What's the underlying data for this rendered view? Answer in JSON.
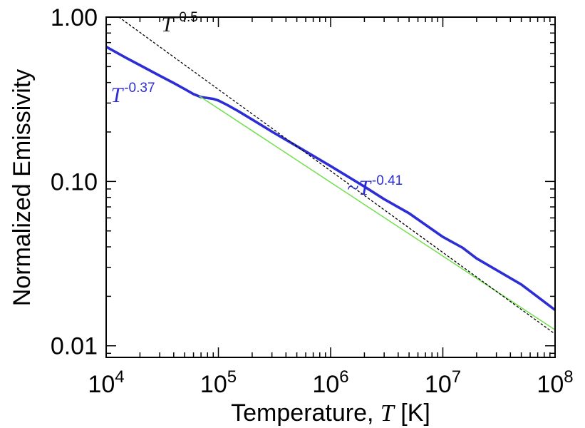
{
  "chart_data": {
    "type": "line",
    "title": "",
    "xlabel_prefix": "Temperature, ",
    "xlabel_var": "T",
    "xlabel_suffix": " [K]",
    "ylabel": "Normalized Emissivity",
    "xscale": "log",
    "yscale": "log",
    "xlim": [
      10000,
      100000000
    ],
    "ylim": [
      0.0085,
      1.0
    ],
    "x_ticks": [
      {
        "value": 10000,
        "base": "10",
        "exp": "4"
      },
      {
        "value": 100000,
        "base": "10",
        "exp": "5"
      },
      {
        "value": 1000000,
        "base": "10",
        "exp": "6"
      },
      {
        "value": 10000000,
        "base": "10",
        "exp": "7"
      },
      {
        "value": 100000000,
        "base": "10",
        "exp": "8"
      }
    ],
    "y_ticks": [
      {
        "value": 0.01,
        "label": "0.01"
      },
      {
        "value": 0.1,
        "label": "0.10"
      },
      {
        "value": 1.0,
        "label": "1.00"
      }
    ],
    "grid": false,
    "series": [
      {
        "color": "#2d2dd6",
        "style": "solid-thick",
        "x": [
          10000,
          15000,
          20000,
          30000,
          40000,
          50000,
          60000,
          70000,
          80000,
          90000,
          100000,
          120000,
          150000,
          200000,
          300000,
          500000,
          1000000,
          2000000,
          3000000,
          5000000,
          10000000,
          15000000,
          20000000,
          50000000,
          100000000
        ],
        "y": [
          0.66,
          0.566,
          0.51,
          0.44,
          0.397,
          0.365,
          0.34,
          0.326,
          0.322,
          0.318,
          0.311,
          0.292,
          0.268,
          0.238,
          0.201,
          0.164,
          0.124,
          0.093,
          0.078,
          0.064,
          0.046,
          0.0395,
          0.034,
          0.0236,
          0.0165
        ]
      },
      {
        "color": "#6fe04a",
        "style": "solid-thin",
        "x": [
          68000,
          100000000
        ],
        "y": [
          0.33,
          0.0125
        ]
      },
      {
        "color": "#000000",
        "style": "dotted",
        "x": [
          13000,
          100000000
        ],
        "y": [
          1.0,
          0.0118
        ]
      }
    ],
    "annotations": [
      {
        "base": "T",
        "exp": "-0.5",
        "color": "#111111",
        "at_x": 31000,
        "at_y": 0.82
      },
      {
        "base": "T",
        "exp": "-0.37",
        "color": "#2d2dd6",
        "at_x": 11000,
        "at_y": 0.305
      },
      {
        "base": "~T",
        "exp": "-0.41",
        "color": "#2d2dd6",
        "at_x": 1400000,
        "at_y": 0.083
      }
    ]
  }
}
